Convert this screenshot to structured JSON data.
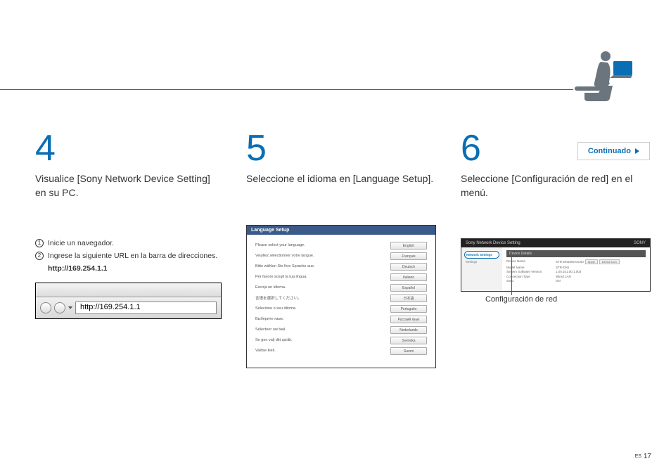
{
  "continuado": "Continuado",
  "step4": {
    "num": "4",
    "title": "Visualice [Sony Network Device Setting] en su PC.",
    "sub1": "Inicie un navegador.",
    "sub2": "Ingrese la siguiente URL en la barra de direcciones.",
    "url": "http://169.254.1.1",
    "addrbar": "http://169.254.1.1"
  },
  "step5": {
    "num": "5",
    "title": "Seleccione el idioma en [Language Setup].",
    "header": "Language Setup",
    "rows": [
      {
        "label": "Please select your language.",
        "btn": "English"
      },
      {
        "label": "Veuillez sélectionner votre langue.",
        "btn": "Français"
      },
      {
        "label": "Bitte wählen Sie Ihre Sprache aus.",
        "btn": "Deutsch"
      },
      {
        "label": "Per favore scegli la tua lingua.",
        "btn": "Italiano"
      },
      {
        "label": "Escoja un idioma.",
        "btn": "Español"
      },
      {
        "label": "言語を選択してください。",
        "btn": "日本語"
      },
      {
        "label": "Selecione o seu idioma.",
        "btn": "Português"
      },
      {
        "label": "Выберите язык.",
        "btn": "Русский язык"
      },
      {
        "label": "Selecteer uw taal.",
        "btn": "Nederlands"
      },
      {
        "label": "Se gen valj ditt språk.",
        "btn": "Svenska"
      },
      {
        "label": "Valitse kieli.",
        "btn": "Suomi"
      }
    ]
  },
  "step6": {
    "num": "6",
    "title": "Seleccione [Configuración de red] en el menú.",
    "topbar_title": "Sony Network Device Setting",
    "topbar_brand": "SONY",
    "sidebar_active": "Network Settings",
    "sidebar_item2": "Settings",
    "section": "Device Details",
    "fields": [
      {
        "label": "Device Name",
        "val": "STR-DN1050 DC00",
        "btns": true
      },
      {
        "label": "Model Name",
        "val": "STR-DN1"
      },
      {
        "label": "System Software Version",
        "val": "1.00.101.00.1.003"
      },
      {
        "label": "Connection Type",
        "val": "Wired LAN"
      },
      {
        "label": "SSID",
        "val": "ON"
      }
    ],
    "caption": "Configuración de red"
  },
  "page": {
    "prefix": "ES",
    "num": "17"
  }
}
